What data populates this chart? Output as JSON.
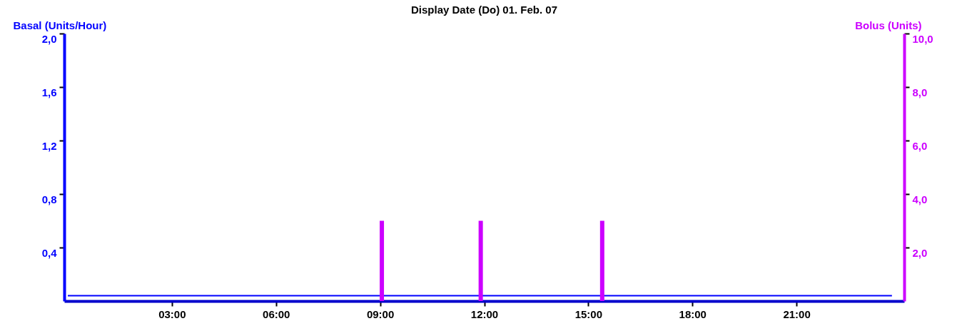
{
  "chart_data": {
    "type": "line",
    "title": "Display Date (Do) 01. Feb. 07",
    "ylabel": "Basal (Units/Hour)",
    "y2label": "Bolus (Units)",
    "xlim": [
      0,
      24
    ],
    "xticks": [
      {
        "value": 3,
        "label": "03:00"
      },
      {
        "value": 6,
        "label": "06:00"
      },
      {
        "value": 9,
        "label": "09:00"
      },
      {
        "value": 12,
        "label": "12:00"
      },
      {
        "value": 15,
        "label": "15:00"
      },
      {
        "value": 18,
        "label": "18:00"
      },
      {
        "value": 21,
        "label": "21:00"
      }
    ],
    "ylim": [
      0,
      2
    ],
    "yticks": [
      {
        "value": 0.4,
        "label": "0,4"
      },
      {
        "value": 0.8,
        "label": "0,8"
      },
      {
        "value": 1.2,
        "label": "1,2"
      },
      {
        "value": 1.6,
        "label": "1,6"
      },
      {
        "value": 2,
        "label": "2,0"
      }
    ],
    "y2lim": [
      0,
      10
    ],
    "y2ticks": [
      {
        "value": 2,
        "label": "2,0"
      },
      {
        "value": 4,
        "label": "4,0"
      },
      {
        "value": 6,
        "label": "6,0"
      },
      {
        "value": 8,
        "label": "8,0"
      },
      {
        "value": 10,
        "label": "10,0"
      }
    ],
    "grid": false,
    "series": [
      {
        "color": "#0000ff",
        "x": [
          0,
          23.75
        ],
        "values": [
          0.04,
          0.04
        ]
      },
      {
        "type": "bar",
        "axis": "y2",
        "color": "#cc00ff",
        "x": [
          9.05,
          11.9,
          15.4
        ],
        "values": [
          3,
          3,
          3
        ]
      }
    ]
  }
}
